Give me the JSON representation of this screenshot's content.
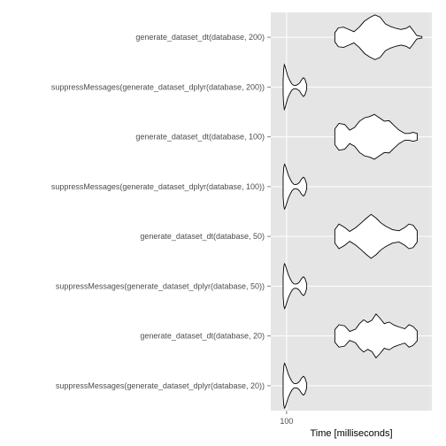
{
  "chart_data": {
    "type": "violin",
    "title": "",
    "xlabel": "Time [milliseconds]",
    "ylabel": "",
    "x_scale": "log",
    "x_ticks": [
      100
    ],
    "xlim": [
      97,
      150
    ],
    "grid": true,
    "background": "#e5e5e5",
    "gridline_color": "#ffffff",
    "categories": [
      "suppressMessages(generate_dataset_dplyr(database, 20))",
      "generate_dataset_dt(database, 20)",
      "suppressMessages(generate_dataset_dplyr(database, 50))",
      "generate_dataset_dt(database, 50)",
      "suppressMessages(generate_dataset_dplyr(database, 100))",
      "generate_dataset_dt(database, 100)",
      "suppressMessages(generate_dataset_dplyr(database, 200))",
      "generate_dataset_dt(database, 200)"
    ],
    "series": [
      {
        "category": "suppressMessages(generate_dataset_dplyr(database, 20))",
        "min": 99,
        "max": 106,
        "profile": [
          [
            0.0,
            0.45
          ],
          [
            0.03,
            0.88
          ],
          [
            0.06,
            1.0
          ],
          [
            0.1,
            0.92
          ],
          [
            0.15,
            0.75
          ],
          [
            0.22,
            0.52
          ],
          [
            0.3,
            0.33
          ],
          [
            0.38,
            0.18
          ],
          [
            0.46,
            0.1
          ],
          [
            0.54,
            0.09
          ],
          [
            0.62,
            0.12
          ],
          [
            0.7,
            0.2
          ],
          [
            0.78,
            0.34
          ],
          [
            0.86,
            0.42
          ],
          [
            0.92,
            0.36
          ],
          [
            0.97,
            0.2
          ],
          [
            1.0,
            0.1
          ]
        ]
      },
      {
        "category": "generate_dataset_dt(database, 20)",
        "min": 115,
        "max": 146,
        "profile": [
          [
            0.0,
            0.28
          ],
          [
            0.05,
            0.5
          ],
          [
            0.12,
            0.45
          ],
          [
            0.18,
            0.2
          ],
          [
            0.25,
            0.3
          ],
          [
            0.3,
            0.55
          ],
          [
            0.35,
            0.72
          ],
          [
            0.4,
            0.6
          ],
          [
            0.45,
            0.7
          ],
          [
            0.5,
            0.98
          ],
          [
            0.55,
            0.78
          ],
          [
            0.6,
            0.55
          ],
          [
            0.66,
            0.62
          ],
          [
            0.72,
            0.48
          ],
          [
            0.78,
            0.4
          ],
          [
            0.85,
            0.32
          ],
          [
            0.9,
            0.5
          ],
          [
            0.95,
            0.42
          ],
          [
            1.0,
            0.22
          ]
        ]
      },
      {
        "category": "suppressMessages(generate_dataset_dplyr(database, 50))",
        "min": 99,
        "max": 106,
        "profile": [
          [
            0.0,
            0.45
          ],
          [
            0.03,
            0.88
          ],
          [
            0.06,
            1.0
          ],
          [
            0.1,
            0.92
          ],
          [
            0.15,
            0.75
          ],
          [
            0.22,
            0.52
          ],
          [
            0.3,
            0.33
          ],
          [
            0.38,
            0.18
          ],
          [
            0.46,
            0.1
          ],
          [
            0.54,
            0.09
          ],
          [
            0.62,
            0.12
          ],
          [
            0.7,
            0.2
          ],
          [
            0.78,
            0.34
          ],
          [
            0.86,
            0.42
          ],
          [
            0.92,
            0.36
          ],
          [
            0.97,
            0.2
          ],
          [
            1.0,
            0.1
          ]
        ]
      },
      {
        "category": "generate_dataset_dt(database, 50)",
        "min": 115,
        "max": 146,
        "profile": [
          [
            0.0,
            0.3
          ],
          [
            0.05,
            0.55
          ],
          [
            0.12,
            0.4
          ],
          [
            0.18,
            0.22
          ],
          [
            0.25,
            0.38
          ],
          [
            0.32,
            0.6
          ],
          [
            0.38,
            0.8
          ],
          [
            0.44,
            0.98
          ],
          [
            0.5,
            0.82
          ],
          [
            0.56,
            0.6
          ],
          [
            0.62,
            0.45
          ],
          [
            0.7,
            0.3
          ],
          [
            0.78,
            0.25
          ],
          [
            0.85,
            0.4
          ],
          [
            0.9,
            0.55
          ],
          [
            0.95,
            0.5
          ],
          [
            1.0,
            0.25
          ]
        ]
      },
      {
        "category": "suppressMessages(generate_dataset_dplyr(database, 100))",
        "min": 99,
        "max": 106,
        "profile": [
          [
            0.0,
            0.45
          ],
          [
            0.03,
            0.88
          ],
          [
            0.06,
            1.0
          ],
          [
            0.1,
            0.92
          ],
          [
            0.15,
            0.75
          ],
          [
            0.22,
            0.52
          ],
          [
            0.3,
            0.33
          ],
          [
            0.38,
            0.18
          ],
          [
            0.46,
            0.1
          ],
          [
            0.54,
            0.09
          ],
          [
            0.62,
            0.12
          ],
          [
            0.7,
            0.2
          ],
          [
            0.78,
            0.34
          ],
          [
            0.86,
            0.42
          ],
          [
            0.92,
            0.36
          ],
          [
            0.97,
            0.2
          ],
          [
            1.0,
            0.1
          ]
        ]
      },
      {
        "category": "generate_dataset_dt(database, 100)",
        "min": 115,
        "max": 146,
        "profile": [
          [
            0.0,
            0.35
          ],
          [
            0.05,
            0.6
          ],
          [
            0.12,
            0.55
          ],
          [
            0.18,
            0.3
          ],
          [
            0.24,
            0.42
          ],
          [
            0.3,
            0.7
          ],
          [
            0.36,
            0.85
          ],
          [
            0.42,
            0.9
          ],
          [
            0.48,
            1.0
          ],
          [
            0.54,
            0.85
          ],
          [
            0.6,
            0.7
          ],
          [
            0.66,
            0.72
          ],
          [
            0.72,
            0.5
          ],
          [
            0.78,
            0.3
          ],
          [
            0.85,
            0.15
          ],
          [
            0.9,
            0.15
          ],
          [
            0.95,
            0.2
          ],
          [
            1.0,
            0.15
          ]
        ]
      },
      {
        "category": "suppressMessages(generate_dataset_dplyr(database, 200))",
        "min": 99,
        "max": 106,
        "profile": [
          [
            0.0,
            0.3
          ],
          [
            0.02,
            0.75
          ],
          [
            0.05,
            1.0
          ],
          [
            0.09,
            0.9
          ],
          [
            0.14,
            0.7
          ],
          [
            0.2,
            0.48
          ],
          [
            0.28,
            0.3
          ],
          [
            0.36,
            0.15
          ],
          [
            0.44,
            0.08
          ],
          [
            0.52,
            0.07
          ],
          [
            0.6,
            0.1
          ],
          [
            0.7,
            0.18
          ],
          [
            0.78,
            0.32
          ],
          [
            0.86,
            0.42
          ],
          [
            0.92,
            0.36
          ],
          [
            0.97,
            0.2
          ],
          [
            1.0,
            0.1
          ]
        ]
      },
      {
        "category": "generate_dataset_dt(database, 200)",
        "min": 115,
        "max": 148,
        "profile": [
          [
            0.0,
            0.2
          ],
          [
            0.04,
            0.42
          ],
          [
            0.1,
            0.45
          ],
          [
            0.16,
            0.35
          ],
          [
            0.22,
            0.25
          ],
          [
            0.28,
            0.45
          ],
          [
            0.34,
            0.72
          ],
          [
            0.4,
            0.88
          ],
          [
            0.46,
            1.0
          ],
          [
            0.52,
            0.9
          ],
          [
            0.58,
            0.6
          ],
          [
            0.64,
            0.48
          ],
          [
            0.7,
            0.4
          ],
          [
            0.76,
            0.35
          ],
          [
            0.82,
            0.4
          ],
          [
            0.86,
            0.5
          ],
          [
            0.9,
            0.3
          ],
          [
            0.94,
            0.08
          ],
          [
            1.0,
            0.03
          ]
        ]
      }
    ]
  }
}
